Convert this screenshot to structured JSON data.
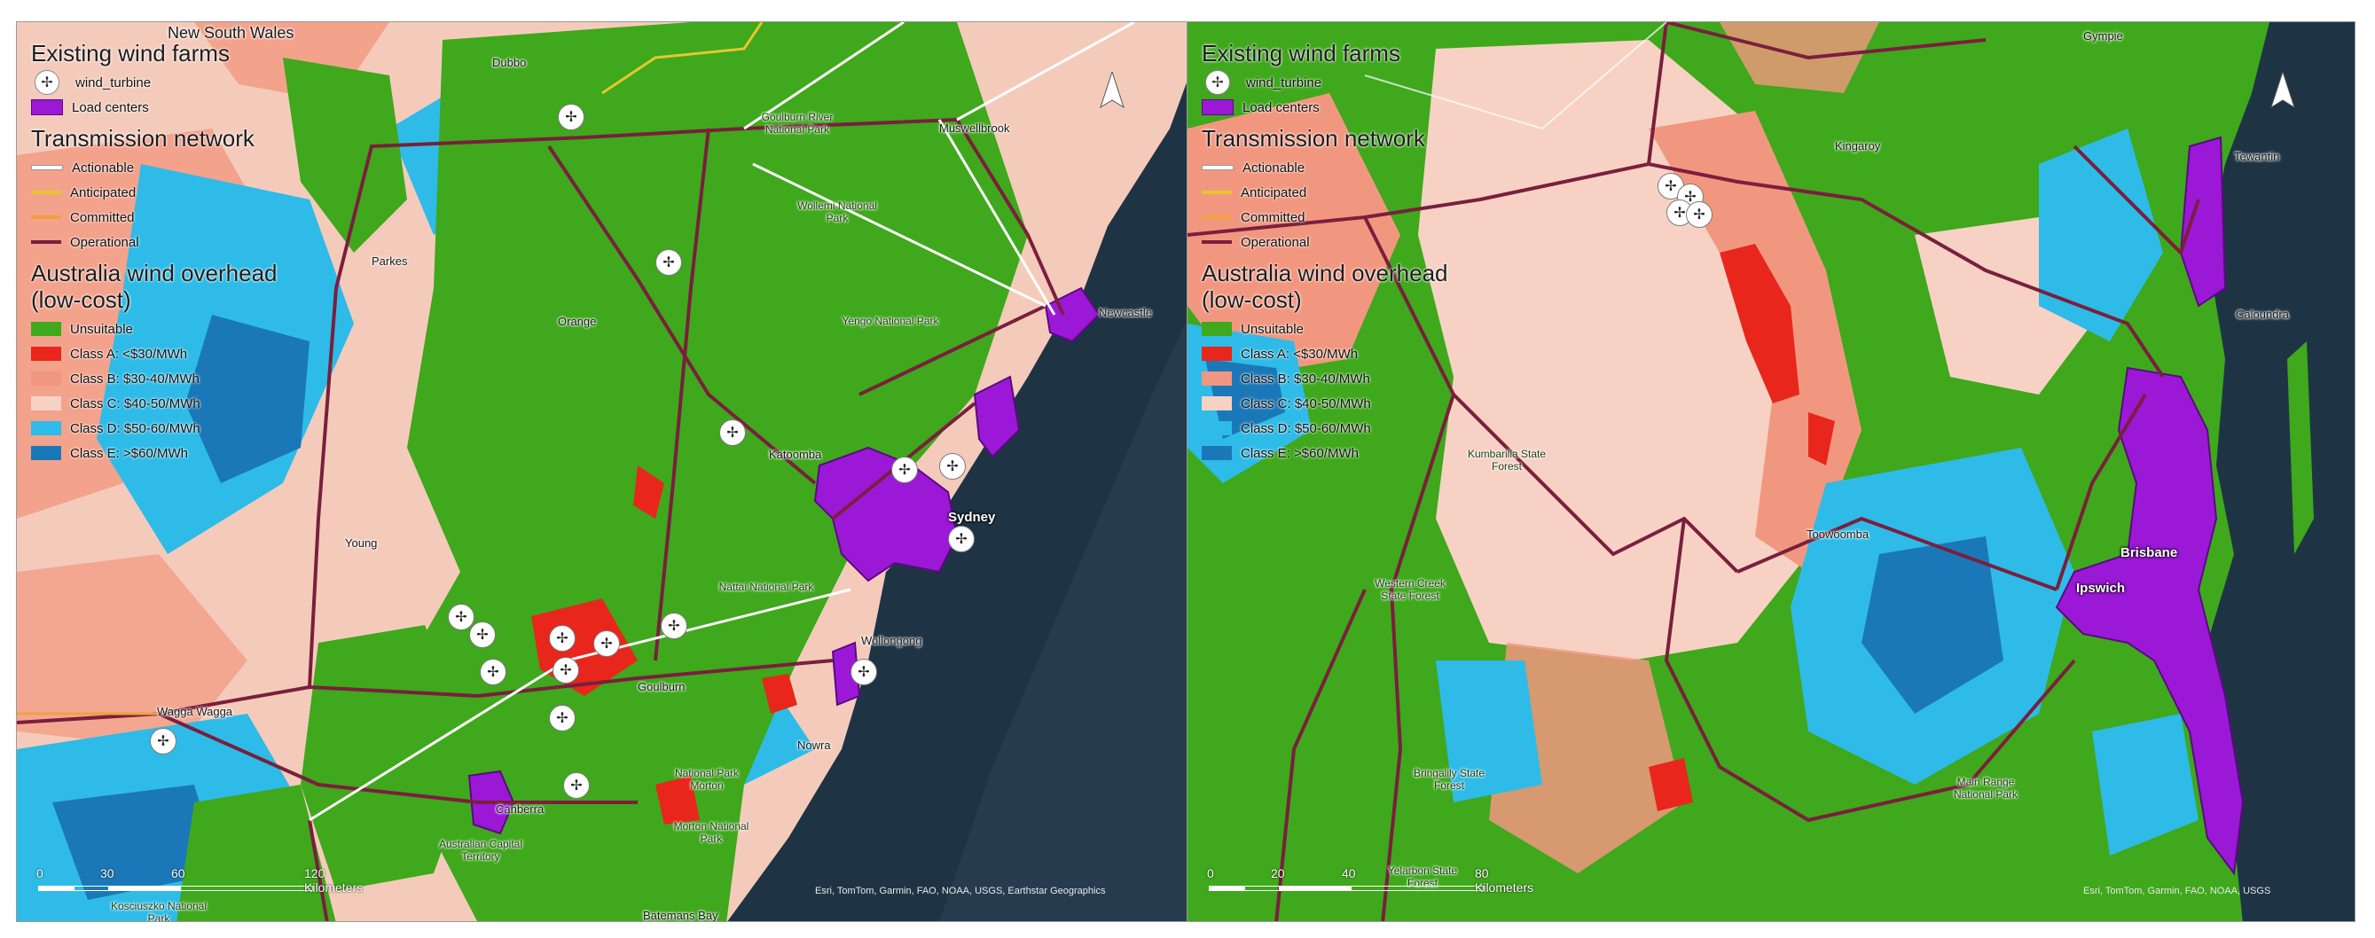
{
  "panels": [
    {
      "id": "nsw",
      "legend": {
        "wind_farms_title": "Existing wind farms",
        "turbine_label": "wind_turbine",
        "load_label": "Load centers",
        "network_title": "Transmission network",
        "network_items": [
          {
            "label": "Actionable",
            "color": "#ffffff"
          },
          {
            "label": "Anticipated",
            "color": "#e7c62d"
          },
          {
            "label": "Committed",
            "color": "#f2a13a"
          },
          {
            "label": "Operational",
            "color": "#7a1f3d"
          }
        ],
        "overhead_title_1": "Australia wind overhead",
        "overhead_title_2": "(low-cost)",
        "classes": [
          {
            "label": "Unsuitable",
            "color": "#3fa81c"
          },
          {
            "label": "Class A: <$30/MWh",
            "color": "#e8261c"
          },
          {
            "label": "Class B: $30-40/MWh",
            "color": "#f2977f"
          },
          {
            "label": "Class C: $40-50/MWh",
            "color": "#f7d2c4"
          },
          {
            "label": "Class D: $50-60/MWh",
            "color": "#2ebbe8"
          },
          {
            "label": "Class E: >$60/MWh",
            "color": "#1b78b8"
          }
        ]
      },
      "places": {
        "nsw": "New South Wales",
        "dubbo": "Dubbo",
        "muswellbrook": "Muswellbrook",
        "goulburn_river": "Goulburn River National Park",
        "wollemi": "Wollemi National Park",
        "parkes": "Parkes",
        "orange": "Orange",
        "yengo": "Yengo National Park",
        "newcastle": "Newcastle",
        "katoomba": "Katoomba",
        "sydney": "Sydney",
        "young": "Young",
        "nattai": "Nattai National Park",
        "wollongong": "Wollongong",
        "goulburn": "Goulburn",
        "wagga": "Wagga Wagga",
        "nowra": "Nowra",
        "morton1": "National Park Morton",
        "morton2": "Morton National Park",
        "canberra": "Canberra",
        "act": "Australian Capital Territory",
        "batemans": "Batemans Bay",
        "kosciuszko": "Kosciuszko National Park"
      },
      "scale": {
        "t0": "0",
        "t1": "30",
        "t2": "60",
        "t3": "120 Kilometers"
      },
      "attribution": "Esri, TomTom, Garmin, FAO, NOAA, USGS, Earthstar Geographics"
    },
    {
      "id": "qld",
      "legend": {
        "wind_farms_title": "Existing wind farms",
        "turbine_label": "wind_turbine",
        "load_label": "Load centers",
        "network_title": "Transmission network",
        "network_items": [
          {
            "label": "Actionable",
            "color": "#ffffff"
          },
          {
            "label": "Anticipated",
            "color": "#e7c62d"
          },
          {
            "label": "Committed",
            "color": "#f2a13a"
          },
          {
            "label": "Operational",
            "color": "#7a1f3d"
          }
        ],
        "overhead_title_1": "Australia wind overhead",
        "overhead_title_2": "(low-cost)",
        "classes": [
          {
            "label": "Unsuitable",
            "color": "#3fa81c"
          },
          {
            "label": "Class A: <$30/MWh",
            "color": "#e8261c"
          },
          {
            "label": "Class B: $30-40/MWh",
            "color": "#f2977f"
          },
          {
            "label": "Class C: $40-50/MWh",
            "color": "#f7d2c4"
          },
          {
            "label": "Class D: $50-60/MWh",
            "color": "#2ebbe8"
          },
          {
            "label": "Class E: >$60/MWh",
            "color": "#1b78b8"
          }
        ]
      },
      "places": {
        "gympie": "Gympie",
        "kingaroy": "Kingaroy",
        "tewantin": "Tewantin",
        "caloundra": "Caloundra",
        "kumbarilla": "Kumbarilla State Forest",
        "toowoomba": "Toowoomba",
        "western_creek": "Western Creek State Forest",
        "brisbane": "Brisbane",
        "ipswich": "Ipswich",
        "main_range": "Main Range National Park",
        "gurulba": "Bringalily State Forest",
        "yelarbon": "Yelarbon State Forest"
      },
      "scale": {
        "t0": "0",
        "t1": "20",
        "t2": "40",
        "t3": "80 Kilometers"
      },
      "attribution": "Esri, TomTom, Garmin, FAO, NOAA, USGS"
    }
  ]
}
